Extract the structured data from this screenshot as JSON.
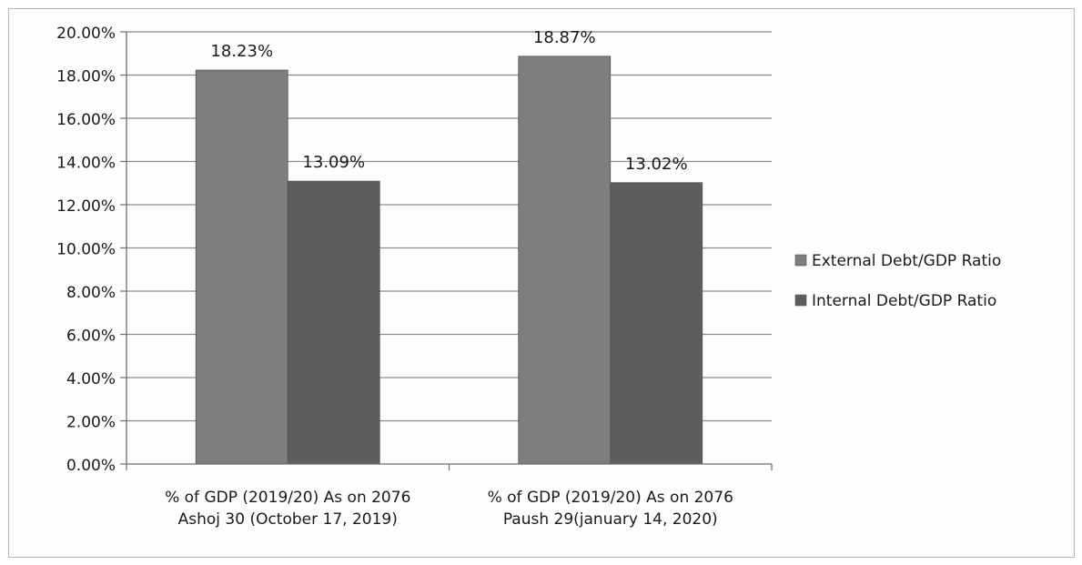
{
  "chart_data": {
    "type": "bar",
    "categories": [
      [
        "% of GDP (2019/20) As on 2076",
        "Ashoj 30 (October 17, 2019)"
      ],
      [
        "% of GDP (2019/20) As on 2076",
        "Paush 29(january 14, 2020)"
      ]
    ],
    "series": [
      {
        "name": "External Debt/GDP Ratio",
        "values": [
          18.23,
          18.87
        ],
        "labels": [
          "18.23%",
          "18.87%"
        ],
        "color": "#7e7e7e"
      },
      {
        "name": "Internal Debt/GDP Ratio",
        "values": [
          13.09,
          13.02
        ],
        "labels": [
          "13.09%",
          "13.02%"
        ],
        "color": "#5d5d5d"
      }
    ],
    "y_ticks": [
      "0.00%",
      "2.00%",
      "4.00%",
      "6.00%",
      "8.00%",
      "10.00%",
      "12.00%",
      "14.00%",
      "16.00%",
      "18.00%",
      "20.00%"
    ],
    "ylim": [
      0,
      20
    ],
    "y_tick_step": 2,
    "grid": true,
    "legend_position": "right"
  }
}
